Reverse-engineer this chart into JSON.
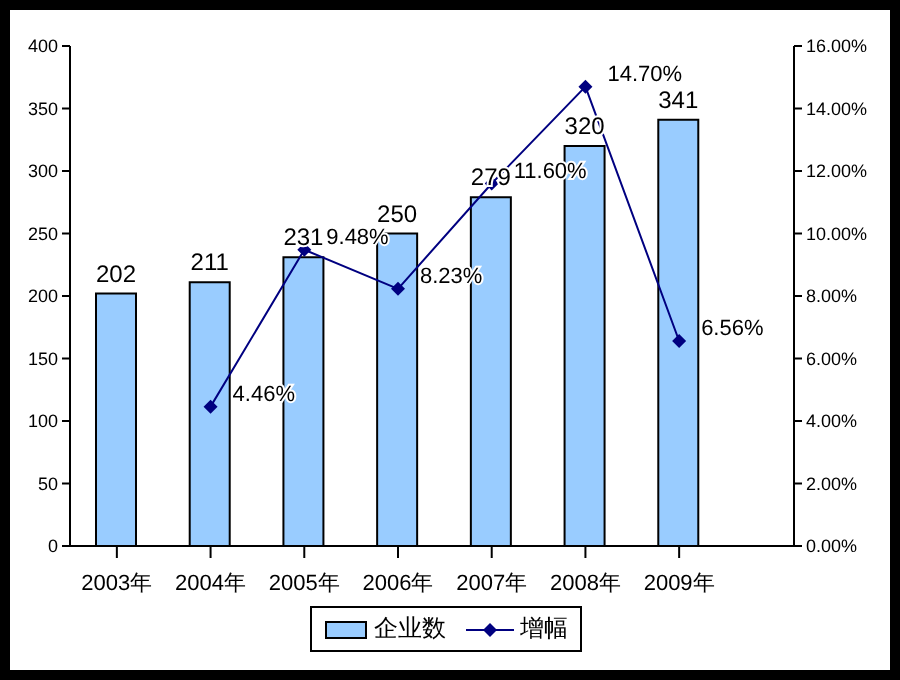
{
  "chart_data": {
    "type": "bar",
    "categories": [
      "2003年",
      "2004年",
      "2005年",
      "2006年",
      "2007年",
      "2008年",
      "2009年"
    ],
    "series": [
      {
        "name": "企业数",
        "color": "#99ccff",
        "values": [
          202,
          211,
          231,
          250,
          279,
          320,
          341
        ],
        "value_labels": [
          "202",
          "211",
          "231",
          "250",
          "279",
          "320",
          "341"
        ]
      },
      {
        "name": "增幅",
        "type": "line",
        "axis": "y2",
        "color": "#000080",
        "values": [
          null,
          4.46,
          9.48,
          8.23,
          11.6,
          14.7,
          6.56
        ],
        "value_labels": [
          null,
          "4.46%",
          "9.48%",
          "8.23%",
          "11.60%",
          "14.70%",
          "6.56%"
        ]
      }
    ],
    "ylim": [
      0,
      400
    ],
    "yticks": [
      0,
      50,
      100,
      150,
      200,
      250,
      300,
      350,
      400
    ],
    "y2lim": [
      0,
      16
    ],
    "y2ticks": [
      {
        "value": 0,
        "label": "0.00%"
      },
      {
        "value": 2,
        "label": "2.00%"
      },
      {
        "value": 4,
        "label": "4.00%"
      },
      {
        "value": 6,
        "label": "6.00%"
      },
      {
        "value": 8,
        "label": "8.00%"
      },
      {
        "value": 10,
        "label": "10.00%"
      },
      {
        "value": 12,
        "label": "12.00%"
      },
      {
        "value": 14,
        "label": "14.00%"
      },
      {
        "value": 16,
        "label": "16.00%"
      }
    ],
    "grid": false,
    "legend": "bottom",
    "marker": "diamond",
    "line_style": "solid"
  }
}
